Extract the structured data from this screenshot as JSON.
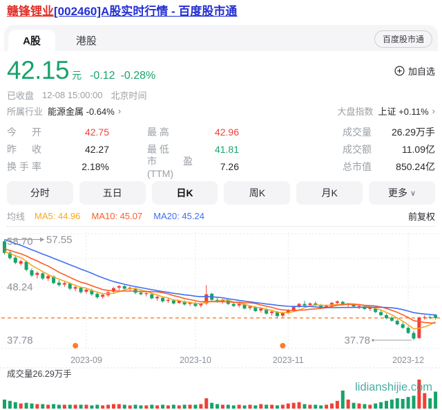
{
  "page": {
    "title_stock": "赣锋锂业",
    "title_rest": "[002460]A股实时行情 - 百度股市通"
  },
  "tabs": {
    "a_share": "A股",
    "hk": "港股",
    "badge": "百度股市通"
  },
  "quote": {
    "price": "42.15",
    "unit": "元",
    "change": "-0.12",
    "change_pct": "-0.28%",
    "add_watchlist": "加自选",
    "market_status": "已收盘",
    "datetime": "12-08 15:00:00",
    "timezone": "北京时间",
    "industry_label": "所属行业",
    "industry": "能源金属 -0.64%",
    "chevron": "›",
    "index_label": "大盘指数",
    "index": "上证 +0.11%"
  },
  "colors": {
    "up": "#ef4136",
    "down": "#17a36b",
    "text": "#26282c",
    "gray": "#9aa0a6",
    "axis": "#8b9099",
    "ma5": "#f6a821",
    "ma10": "#ff5b26",
    "ma20": "#3e6ef5",
    "dash": "#ff8e42",
    "dot": "#ff7b2c",
    "watermark": "#2a9d93",
    "grid": "#e7e7ea"
  },
  "stats": {
    "columns": [
      {
        "items": [
          {
            "label": "今 开",
            "value": "42.75",
            "color": "#ef4136"
          },
          {
            "label": "昨 收",
            "value": "42.27",
            "color": "#26282c"
          },
          {
            "label": "换手率",
            "value": "2.18%",
            "color": "#26282c"
          }
        ]
      },
      {
        "items": [
          {
            "label": "最 高",
            "value": "42.96",
            "color": "#ef4136"
          },
          {
            "label": "最 低",
            "value": "41.81",
            "color": "#17a36b"
          },
          {
            "label": "市盈(TTM)",
            "value": "7.26",
            "color": "#26282c"
          }
        ]
      },
      {
        "items": [
          {
            "label": "成交量",
            "value": "26.29万手",
            "color": "#26282c"
          },
          {
            "label": "成交额",
            "value": "11.09亿",
            "color": "#26282c"
          },
          {
            "label": "总市值",
            "value": "850.24亿",
            "color": "#26282c"
          }
        ]
      }
    ]
  },
  "periods": {
    "items": [
      {
        "label": "分时",
        "selected": false
      },
      {
        "label": "五日",
        "selected": false
      },
      {
        "label": "日K",
        "selected": true
      },
      {
        "label": "周K",
        "selected": false
      },
      {
        "label": "月K",
        "selected": false
      },
      {
        "label": "更多",
        "selected": false,
        "chevron": "∨"
      }
    ]
  },
  "ma_legend": {
    "title": "均线",
    "items": [
      {
        "label": "MA5: 44.96",
        "color": "#f6a821"
      },
      {
        "label": "MA10: 45.07",
        "color": "#ff5b26"
      },
      {
        "label": "MA20: 45.24",
        "color": "#3e6ef5"
      }
    ],
    "right": "前复权"
  },
  "chart_data": {
    "type": "candlestick",
    "x_axis": {
      "labels": [
        {
          "text": "2023-09",
          "index": 15
        },
        {
          "text": "2023-10",
          "index": 35
        },
        {
          "text": "2023-11",
          "index": 52
        },
        {
          "text": "2023-12",
          "index": 74
        }
      ]
    },
    "y_axis": {
      "labels": [
        58.7,
        48.24,
        37.78
      ]
    },
    "latest_price_line": 42.15,
    "high_annotation": {
      "text": "57.55",
      "index": 0,
      "price": 57.55
    },
    "low_annotation": {
      "text": "37.78",
      "index": 75,
      "price": 37.78
    },
    "event_dot_indices": [
      13,
      51
    ],
    "ma_windows": [
      5,
      10,
      20
    ],
    "ma_seed_closes": [
      61.5,
      61.0,
      60.4,
      60.0,
      59.5,
      59.0,
      58.6,
      58.2,
      57.8,
      57.4,
      57.0,
      56.6,
      56.3,
      56.0,
      55.7,
      55.5,
      55.3,
      55.1,
      54.9
    ],
    "volume_pane": {
      "label": "成交量26.29万手",
      "watermark": "lidianshijie.com"
    },
    "candles": [
      [
        57.2,
        57.55,
        54.6,
        54.9,
        14
      ],
      [
        55.0,
        55.4,
        53.6,
        53.9,
        12
      ],
      [
        54.0,
        54.5,
        52.7,
        53.0,
        10
      ],
      [
        52.8,
        53.6,
        52.4,
        53.3,
        8
      ],
      [
        53.2,
        53.4,
        51.3,
        51.6,
        9
      ],
      [
        51.5,
        51.9,
        50.2,
        50.5,
        8
      ],
      [
        50.6,
        51.3,
        49.9,
        51.0,
        7
      ],
      [
        50.9,
        51.1,
        49.6,
        49.9,
        7
      ],
      [
        49.9,
        50.7,
        49.4,
        50.4,
        6
      ],
      [
        50.3,
        50.5,
        48.8,
        49.0,
        7
      ],
      [
        49.1,
        49.6,
        48.3,
        48.6,
        6
      ],
      [
        48.7,
        49.3,
        48.3,
        49.0,
        6
      ],
      [
        48.9,
        49.1,
        47.6,
        47.9,
        6
      ],
      [
        47.9,
        48.5,
        47.4,
        48.2,
        6
      ],
      [
        48.1,
        48.3,
        46.9,
        47.2,
        6
      ],
      [
        47.3,
        48.0,
        46.9,
        47.7,
        6
      ],
      [
        47.6,
        47.9,
        46.5,
        46.8,
        5
      ],
      [
        46.9,
        47.3,
        45.9,
        46.2,
        6
      ],
      [
        46.3,
        47.0,
        45.9,
        46.7,
        5
      ],
      [
        46.6,
        47.4,
        46.3,
        47.2,
        6
      ],
      [
        47.3,
        48.2,
        47.1,
        48.0,
        7
      ],
      [
        48.1,
        48.6,
        47.6,
        48.4,
        7
      ],
      [
        48.4,
        48.6,
        47.7,
        47.9,
        6
      ],
      [
        47.8,
        48.3,
        47.5,
        48.1,
        5
      ],
      [
        48.0,
        48.1,
        46.8,
        47.1,
        6
      ],
      [
        47.1,
        47.6,
        46.6,
        46.8,
        5
      ],
      [
        46.9,
        47.3,
        46.4,
        47.0,
        5
      ],
      [
        46.8,
        47.0,
        45.8,
        46.0,
        6
      ],
      [
        46.0,
        46.5,
        45.5,
        46.3,
        5
      ],
      [
        46.1,
        46.3,
        45.2,
        45.4,
        6
      ],
      [
        45.5,
        46.0,
        45.1,
        45.7,
        5
      ],
      [
        45.6,
        45.8,
        44.8,
        45.0,
        6
      ],
      [
        45.1,
        45.7,
        44.9,
        45.5,
        5
      ],
      [
        45.4,
        45.6,
        44.6,
        44.8,
        6
      ],
      [
        44.9,
        45.3,
        44.5,
        45.1,
        6
      ],
      [
        45.1,
        45.4,
        44.3,
        44.5,
        6
      ],
      [
        44.6,
        45.1,
        44.2,
        44.9,
        7
      ],
      [
        45.0,
        48.6,
        44.7,
        46.8,
        16
      ],
      [
        46.9,
        47.1,
        45.5,
        45.7,
        9
      ],
      [
        45.7,
        46.1,
        45.1,
        45.4,
        7
      ],
      [
        45.4,
        45.9,
        45.0,
        45.7,
        6
      ],
      [
        45.6,
        45.8,
        44.7,
        44.9,
        6
      ],
      [
        44.9,
        45.3,
        44.3,
        44.5,
        5
      ],
      [
        44.6,
        45.1,
        44.2,
        44.9,
        6
      ],
      [
        44.8,
        45.0,
        43.8,
        44.0,
        5
      ],
      [
        44.1,
        44.6,
        43.7,
        44.4,
        6
      ],
      [
        44.3,
        44.5,
        43.3,
        43.5,
        5
      ],
      [
        43.6,
        44.2,
        43.2,
        44.0,
        7
      ],
      [
        43.9,
        44.1,
        42.8,
        43.0,
        6
      ],
      [
        43.1,
        43.7,
        42.6,
        43.4,
        6
      ],
      [
        43.3,
        43.5,
        42.3,
        42.5,
        5
      ],
      [
        42.6,
        43.3,
        42.2,
        43.1,
        6
      ],
      [
        43.2,
        43.9,
        42.9,
        43.7,
        8
      ],
      [
        43.7,
        44.5,
        43.5,
        44.3,
        9
      ],
      [
        44.3,
        45.1,
        44.1,
        44.9,
        10
      ],
      [
        44.9,
        45.5,
        44.4,
        44.6,
        7
      ],
      [
        44.7,
        45.2,
        44.3,
        45.0,
        6
      ],
      [
        45.0,
        45.4,
        44.5,
        44.7,
        6
      ],
      [
        44.7,
        44.9,
        43.9,
        44.1,
        5
      ],
      [
        44.2,
        44.8,
        44.0,
        44.6,
        6
      ],
      [
        44.5,
        45.3,
        44.3,
        45.1,
        8
      ],
      [
        45.1,
        45.6,
        44.8,
        45.4,
        12
      ],
      [
        45.3,
        45.5,
        44.6,
        44.8,
        28
      ],
      [
        44.8,
        45.1,
        44.3,
        44.9,
        14
      ],
      [
        44.8,
        45.0,
        44.2,
        44.4,
        9
      ],
      [
        44.4,
        44.7,
        43.9,
        44.5,
        8
      ],
      [
        44.4,
        44.6,
        43.7,
        43.9,
        7
      ],
      [
        43.9,
        44.3,
        43.5,
        44.1,
        6
      ],
      [
        44.0,
        44.2,
        43.1,
        43.3,
        8
      ],
      [
        43.3,
        43.6,
        42.5,
        42.7,
        10
      ],
      [
        42.7,
        43.0,
        41.9,
        42.1,
        12
      ],
      [
        42.2,
        42.5,
        41.4,
        41.6,
        14
      ],
      [
        41.6,
        41.9,
        40.7,
        40.9,
        16
      ],
      [
        40.9,
        41.3,
        40.0,
        40.2,
        15
      ],
      [
        40.2,
        40.5,
        39.0,
        39.2,
        18
      ],
      [
        39.2,
        39.6,
        37.78,
        38.1,
        20
      ],
      [
        38.2,
        42.4,
        38.0,
        42.2,
        45
      ],
      [
        42.2,
        42.7,
        41.8,
        42.3,
        24
      ],
      [
        42.3,
        42.6,
        41.9,
        42.27,
        16
      ],
      [
        42.75,
        42.96,
        41.81,
        42.15,
        26.29
      ]
    ]
  }
}
